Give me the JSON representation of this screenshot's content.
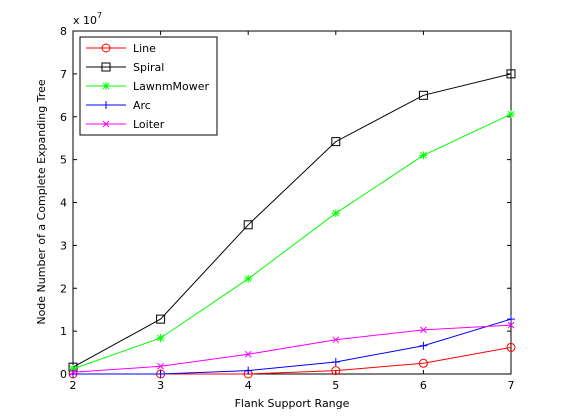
{
  "chart_data": {
    "type": "line",
    "xlabel": "Flank Support Range",
    "ylabel": "Node Number of a Complete Expanding Tree",
    "exponent_base": "x 10",
    "exponent_power": "7",
    "xlim": [
      2,
      7
    ],
    "ylim": [
      0,
      8
    ],
    "x_ticks": [
      2,
      3,
      4,
      5,
      6,
      7
    ],
    "y_ticks": [
      0,
      1,
      2,
      3,
      4,
      5,
      6,
      7,
      8
    ],
    "grid": false,
    "legend_position": "top-left",
    "x": [
      2,
      3,
      4,
      5,
      6,
      7
    ],
    "series": [
      {
        "name": "Line",
        "color": "#ff0000",
        "marker": "circle",
        "values": [
          0.0,
          0.0,
          0.0,
          0.08,
          0.25,
          0.62
        ]
      },
      {
        "name": "Spiral",
        "color": "#000000",
        "marker": "square",
        "values": [
          0.16,
          1.28,
          3.48,
          5.42,
          6.5,
          7.0
        ]
      },
      {
        "name": "LawnmMower",
        "color": "#00ff00",
        "marker": "star",
        "values": [
          0.12,
          0.84,
          2.22,
          3.75,
          5.1,
          6.06
        ]
      },
      {
        "name": "Arc",
        "color": "#0000ff",
        "marker": "plus",
        "values": [
          0.0,
          0.0,
          0.08,
          0.28,
          0.66,
          1.28
        ]
      },
      {
        "name": "Loiter",
        "color": "#ff00ff",
        "marker": "x",
        "values": [
          0.04,
          0.18,
          0.46,
          0.8,
          1.03,
          1.14
        ]
      }
    ]
  }
}
